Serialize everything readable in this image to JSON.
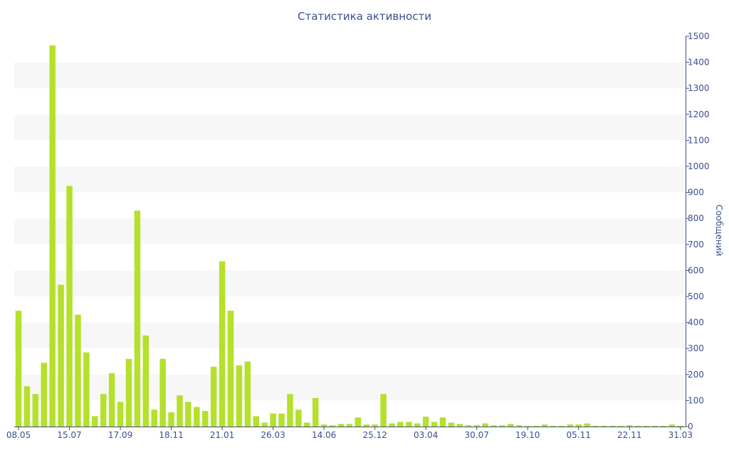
{
  "chart_data": {
    "type": "bar",
    "title": "Статистика активности",
    "ylabel": "Сообщений",
    "ylim": [
      0,
      1500
    ],
    "y_ticks": [
      0,
      100,
      200,
      300,
      400,
      500,
      600,
      700,
      800,
      900,
      1000,
      1100,
      1200,
      1300,
      1400,
      1500
    ],
    "x_tick_labels": [
      {
        "label": "08.05",
        "index": 0
      },
      {
        "label": "15.07",
        "index": 6
      },
      {
        "label": "17.09",
        "index": 12
      },
      {
        "label": "18.11",
        "index": 18
      },
      {
        "label": "21.01",
        "index": 24
      },
      {
        "label": "26.03",
        "index": 30
      },
      {
        "label": "14.06",
        "index": 36
      },
      {
        "label": "25.12",
        "index": 42
      },
      {
        "label": "03.04",
        "index": 48
      },
      {
        "label": "30.07",
        "index": 54
      },
      {
        "label": "19.10",
        "index": 60
      },
      {
        "label": "05.11",
        "index": 66
      },
      {
        "label": "22.11",
        "index": 72
      },
      {
        "label": "31.03",
        "index": 78
      }
    ],
    "bar_color": "#b5e02b",
    "grid": "alternating horizontal bands",
    "y_axis_side": "right",
    "values": [
      445,
      155,
      125,
      245,
      1465,
      545,
      925,
      430,
      285,
      40,
      125,
      205,
      95,
      260,
      830,
      350,
      65,
      260,
      55,
      120,
      95,
      75,
      60,
      230,
      635,
      445,
      235,
      250,
      40,
      15,
      50,
      50,
      125,
      65,
      15,
      110,
      8,
      5,
      10,
      10,
      35,
      8,
      8,
      125,
      12,
      18,
      18,
      12,
      38,
      18,
      35,
      15,
      10,
      5,
      5,
      12,
      5,
      5,
      10,
      5,
      3,
      3,
      8,
      3,
      3,
      8,
      8,
      12,
      3,
      3,
      3,
      3,
      5,
      3,
      3,
      3,
      3,
      8,
      3
    ]
  }
}
